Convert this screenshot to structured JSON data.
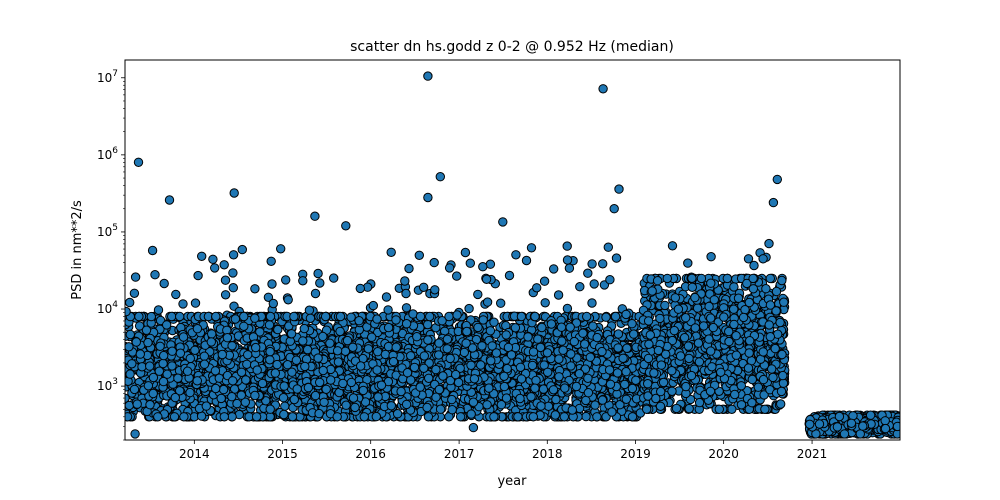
{
  "chart_data": {
    "type": "scatter",
    "title": "scatter dn hs.godd z 0-2 @ 0.952 Hz (median)",
    "xlabel": "year",
    "ylabel": "PSD in nm**2/s",
    "x_scale": "date",
    "y_scale": "log",
    "xlim": [
      "2013-03-20",
      "2021-12-31"
    ],
    "ylim": [
      200,
      17000000
    ],
    "x_ticks": [
      "2014",
      "2015",
      "2016",
      "2017",
      "2018",
      "2019",
      "2020",
      "2021"
    ],
    "y_ticks": [
      {
        "base": "10",
        "exp": "3",
        "value": 1000
      },
      {
        "base": "10",
        "exp": "4",
        "value": 10000
      },
      {
        "base": "10",
        "exp": "5",
        "value": 100000
      },
      {
        "base": "10",
        "exp": "6",
        "value": 1000000
      },
      {
        "base": "10",
        "exp": "7",
        "value": 10000000
      }
    ],
    "grid": false,
    "legend": "none",
    "marker_color": "#1f77b4",
    "marker_edge_color": "#000000",
    "highlighted_points": [
      {
        "x": "2013-05-15",
        "y": 800000
      },
      {
        "x": "2013-09-20",
        "y": 260000
      },
      {
        "x": "2014-06-15",
        "y": 320000
      },
      {
        "x": "2015-05-15",
        "y": 160000
      },
      {
        "x": "2015-09-20",
        "y": 120000
      },
      {
        "x": "2016-08-25",
        "y": 10500000
      },
      {
        "x": "2016-08-25",
        "y": 280000
      },
      {
        "x": "2016-10-15",
        "y": 520000
      },
      {
        "x": "2017-07-01",
        "y": 135000
      },
      {
        "x": "2018-08-20",
        "y": 7200000
      },
      {
        "x": "2018-10-25",
        "y": 360000
      },
      {
        "x": "2018-10-05",
        "y": 200000
      },
      {
        "x": "2020-08-10",
        "y": 480000
      },
      {
        "x": "2020-07-25",
        "y": 240000
      },
      {
        "x": "2013-05-01",
        "y": 240
      },
      {
        "x": "2017-03-01",
        "y": 290
      }
    ],
    "segments": [
      {
        "start": "2013-03-20",
        "end": "2019-02-01",
        "typical_low": 400,
        "typical_high": 8000,
        "outlier_high": 70000,
        "outlier_rate": 0.02
      },
      {
        "start": "2019-02-01",
        "end": "2020-09-10",
        "typical_low": 500,
        "typical_high": 25000,
        "outlier_high": 80000,
        "outlier_rate": 0.015
      },
      {
        "start": "2020-12-20",
        "end": "2021-12-31",
        "typical_low": 240,
        "typical_high": 420,
        "outlier_high": 460,
        "outlier_rate": 0.0
      }
    ],
    "gaps": [
      {
        "start": "2020-09-10",
        "end": "2020-12-20"
      }
    ]
  }
}
